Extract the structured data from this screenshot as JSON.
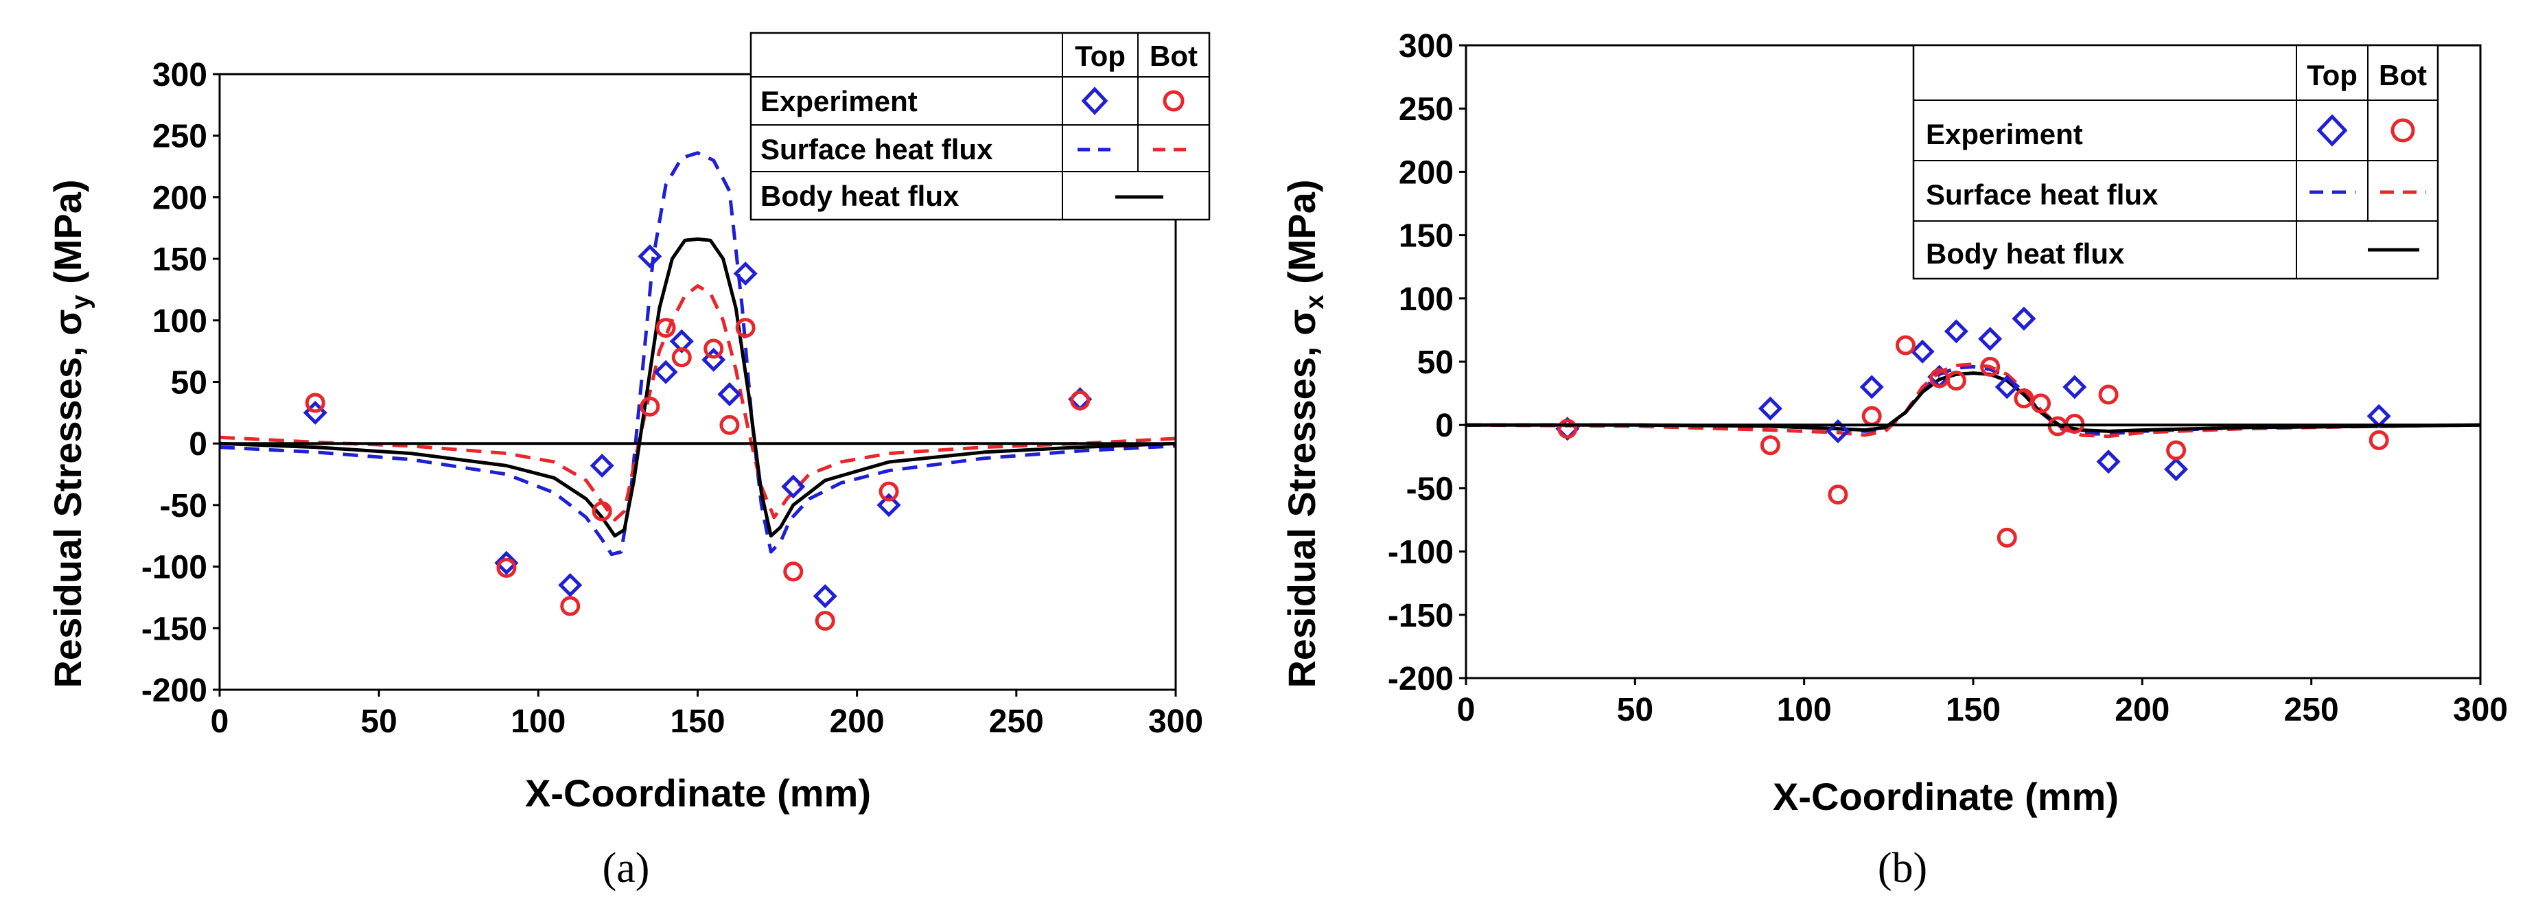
{
  "panels": [
    {
      "caption": "(a)",
      "chart_data": {
        "type": "scatter",
        "title": "",
        "xlabel": "X-Coordinate (mm)",
        "ylabel_main": "Residual Stresses, σ",
        "ylabel_sub": "y",
        "ylabel_unit": " (MPa)",
        "xlim": [
          0,
          300
        ],
        "ylim": [
          -200,
          300
        ],
        "xticks": [
          0,
          50,
          100,
          150,
          200,
          250,
          300
        ],
        "yticks": [
          -200,
          -150,
          -100,
          -50,
          0,
          50,
          100,
          150,
          200,
          250,
          300
        ],
        "grid": false,
        "legend_position": "top-right",
        "legend": {
          "col_top": "Top",
          "col_bot": "Bot",
          "row_experiment": "Experiment",
          "row_surface": "Surface heat flux",
          "row_body": "Body heat flux"
        },
        "series": [
          {
            "name": "Experiment Top",
            "marker": "diamond",
            "color": "#1f1fd6",
            "x": [
              30,
              90,
              110,
              120,
              135,
              140,
              145,
              155,
              160,
              165,
              180,
              190,
              210,
              270
            ],
            "y": [
              25,
              -97,
              -115,
              -18,
              152,
              58,
              83,
              68,
              40,
              138,
              -35,
              -124,
              -50,
              36
            ]
          },
          {
            "name": "Experiment Bot",
            "marker": "circle",
            "color": "#e8262b",
            "x": [
              30,
              90,
              110,
              120,
              135,
              140,
              145,
              155,
              160,
              165,
              180,
              190,
              210,
              270
            ],
            "y": [
              33,
              -101,
              -132,
              -55,
              30,
              94,
              70,
              77,
              15,
              94,
              -104,
              -144,
              -39,
              35
            ]
          },
          {
            "name": "Surface heat flux Top",
            "line": "dashed",
            "color": "#1f1fd6",
            "x": [
              0,
              30,
              60,
              90,
              105,
              115,
              120,
              123,
              126,
              129,
              132,
              136,
              140,
              145,
              150,
              155,
              160,
              164,
              167,
              170,
              173,
              176,
              179,
              185,
              195,
              210,
              240,
              270,
              300
            ],
            "y": [
              -3,
              -7,
              -13,
              -25,
              -40,
              -60,
              -78,
              -90,
              -88,
              -40,
              40,
              150,
              210,
              232,
              236,
              230,
              205,
              110,
              20,
              -50,
              -88,
              -80,
              -62,
              -45,
              -32,
              -22,
              -12,
              -6,
              -2
            ]
          },
          {
            "name": "Surface heat flux Bot",
            "line": "dashed",
            "color": "#e8262b",
            "x": [
              0,
              30,
              60,
              90,
              105,
              115,
              120,
              124,
              127,
              130,
              134,
              138,
              142,
              146,
              150,
              154,
              158,
              162,
              166,
              170,
              174,
              178,
              185,
              195,
              210,
              240,
              270,
              300
            ],
            "y": [
              5,
              1,
              -2,
              -8,
              -15,
              -30,
              -48,
              -62,
              -55,
              -18,
              30,
              75,
              100,
              120,
              128,
              122,
              100,
              60,
              10,
              -35,
              -60,
              -45,
              -25,
              -15,
              -8,
              -3,
              0,
              4
            ]
          },
          {
            "name": "Body heat flux",
            "line": "solid",
            "color": "#000000",
            "x": [
              0,
              30,
              60,
              90,
              105,
              115,
              120,
              124,
              127,
              130,
              134,
              138,
              142,
              146,
              150,
              154,
              158,
              162,
              166,
              170,
              173,
              176,
              180,
              190,
              210,
              240,
              270,
              300
            ],
            "y": [
              0,
              -3,
              -8,
              -18,
              -28,
              -45,
              -60,
              -75,
              -70,
              -30,
              40,
              110,
              150,
              165,
              166,
              165,
              150,
              110,
              40,
              -40,
              -75,
              -68,
              -50,
              -30,
              -15,
              -7,
              -3,
              0
            ]
          }
        ]
      }
    },
    {
      "caption": "(b)",
      "chart_data": {
        "type": "scatter",
        "title": "",
        "xlabel": "X-Coordinate (mm)",
        "ylabel_main": "Residual Stresses, σ",
        "ylabel_sub": "x",
        "ylabel_unit": " (MPa)",
        "xlim": [
          0,
          300
        ],
        "ylim": [
          -200,
          300
        ],
        "xticks": [
          0,
          50,
          100,
          150,
          200,
          250,
          300
        ],
        "yticks": [
          -200,
          -150,
          -100,
          -50,
          0,
          50,
          100,
          150,
          200,
          250,
          300
        ],
        "grid": false,
        "legend_position": "top-right",
        "legend": {
          "col_top": "Top",
          "col_bot": "Bot",
          "row_experiment": "Experiment",
          "row_surface": "Surface heat flux",
          "row_body": "Body heat flux"
        },
        "series": [
          {
            "name": "Experiment Top",
            "marker": "diamond",
            "color": "#1f1fd6",
            "x": [
              30,
              90,
              110,
              120,
              135,
              140,
              145,
              155,
              160,
              165,
              180,
              190,
              210,
              270
            ],
            "y": [
              -3,
              13,
              -5,
              30,
              58,
              38,
              74,
              68,
              30,
              84,
              30,
              -29,
              -35,
              7
            ]
          },
          {
            "name": "Experiment Bot",
            "marker": "circle",
            "color": "#e8262b",
            "x": [
              30,
              90,
              110,
              120,
              130,
              140,
              145,
              155,
              160,
              165,
              170,
              175,
              180,
              190,
              210,
              270
            ],
            "y": [
              -3,
              -16,
              -55,
              7,
              63,
              37,
              35,
              46,
              -89,
              21,
              17,
              -1,
              1,
              24,
              -20,
              -12
            ]
          },
          {
            "name": "Surface heat flux Top",
            "line": "dashed",
            "color": "#1f1fd6",
            "x": [
              0,
              50,
              90,
              110,
              118,
              124,
              130,
              135,
              140,
              145,
              150,
              155,
              160,
              165,
              170,
              176,
              182,
              190,
              200,
              230,
              270,
              300
            ],
            "y": [
              0,
              0,
              -1,
              -3,
              -5,
              -3,
              10,
              28,
              40,
              45,
              46,
              44,
              38,
              26,
              10,
              -3,
              -7,
              -7,
              -5,
              -2,
              -1,
              0
            ]
          },
          {
            "name": "Surface heat flux Bot",
            "line": "dashed",
            "color": "#e8262b",
            "x": [
              0,
              50,
              90,
              110,
              118,
              124,
              130,
              135,
              140,
              145,
              150,
              155,
              160,
              165,
              170,
              176,
              182,
              190,
              200,
              230,
              270,
              300
            ],
            "y": [
              0,
              -1,
              -4,
              -6,
              -8,
              -5,
              10,
              30,
              42,
              47,
              48,
              46,
              40,
              28,
              12,
              -2,
              -8,
              -9,
              -6,
              -3,
              -1,
              0
            ]
          },
          {
            "name": "Body heat flux",
            "line": "solid",
            "color": "#000000",
            "x": [
              0,
              50,
              90,
              110,
              118,
              124,
              130,
              135,
              140,
              145,
              150,
              155,
              160,
              165,
              170,
              176,
              182,
              190,
              200,
              230,
              270,
              300
            ],
            "y": [
              0,
              0,
              -1,
              -3,
              -4,
              -2,
              10,
              26,
              36,
              40,
              41,
              40,
              35,
              24,
              10,
              -1,
              -4,
              -5,
              -4,
              -2,
              -1,
              0
            ]
          }
        ]
      }
    }
  ]
}
